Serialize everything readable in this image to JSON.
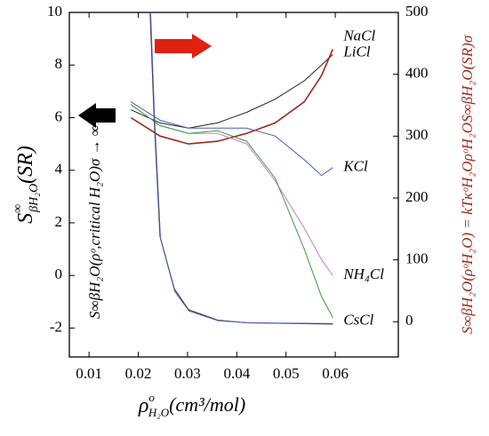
{
  "chart_data": {
    "type": "line",
    "x_label": [
      "ρ",
      "o",
      "H₂O",
      "(cm³/mol)"
    ],
    "y_label": [
      "S",
      "∞",
      "βH₂O",
      "(SR)"
    ],
    "y2_label": "S∞βH₂O(ρᵒH₂O) = kTκᵒH₂OρᵒH₂OS∞βH₂O(SR)σ",
    "annotation": "S∞βH₂O(ρᵒ,critical H₂O)σ → ∞",
    "xlim": [
      0.006,
      0.0728
    ],
    "xticks": [
      0.01,
      0.02,
      0.03,
      0.04,
      0.05,
      0.06
    ],
    "ylim": [
      -3.1,
      10
    ],
    "yticks": [
      -2,
      0,
      2,
      4,
      6,
      8,
      10
    ],
    "y2lim": [
      -57,
      500
    ],
    "y2ticks": [
      0,
      100,
      200,
      300,
      400,
      500
    ],
    "series": [
      {
        "name": "NaCl",
        "color": "#222222",
        "x": [
          0.0185,
          0.0244,
          0.0302,
          0.0361,
          0.042,
          0.0478,
          0.0537,
          0.0572,
          0.0595
        ],
        "values": [
          6.3,
          5.8,
          5.6,
          5.8,
          6.2,
          6.7,
          7.4,
          8.0,
          8.4
        ]
      },
      {
        "name": "LiCl",
        "color": "#a0281c",
        "x": [
          0.0185,
          0.0244,
          0.0302,
          0.0361,
          0.042,
          0.0478,
          0.0537,
          0.0572,
          0.0595
        ],
        "values": [
          6.0,
          5.3,
          5.0,
          5.1,
          5.4,
          5.8,
          6.6,
          7.6,
          8.6
        ]
      },
      {
        "name": "KCl",
        "color": "#4a5bb8",
        "x": [
          0.0185,
          0.0244,
          0.0302,
          0.0361,
          0.042,
          0.0478,
          0.0537,
          0.0572,
          0.0595
        ],
        "values": [
          6.6,
          5.9,
          5.6,
          5.6,
          5.6,
          5.3,
          4.4,
          3.8,
          4.1
        ]
      },
      {
        "name": "NH₄Cl",
        "color": "#c77ad6",
        "x": [
          0.0185,
          0.0244,
          0.0302,
          0.0361,
          0.042,
          0.0478,
          0.0537,
          0.0572,
          0.0595
        ],
        "values": [
          6.5,
          5.7,
          5.4,
          5.4,
          5.0,
          3.6,
          1.8,
          0.6,
          0.0
        ]
      },
      {
        "name": "CsCl",
        "color": "#3c9a3c",
        "x": [
          0.0185,
          0.0244,
          0.0302,
          0.0361,
          0.042,
          0.0478,
          0.0537,
          0.0572,
          0.0595
        ],
        "values": [
          6.5,
          5.7,
          5.4,
          5.5,
          5.1,
          3.7,
          1.0,
          -0.8,
          -1.6
        ]
      },
      {
        "color": "#333333",
        "x": [
          0.0224,
          0.0232,
          0.0244,
          0.0273,
          0.0302,
          0.0361,
          0.042,
          0.0595
        ],
        "values": [
          10,
          6,
          1.5,
          -0.5,
          -1.3,
          -1.7,
          -1.8,
          -1.85
        ]
      },
      {
        "color": "#4a5bb8",
        "x": [
          0.0225,
          0.0233,
          0.0245,
          0.0274,
          0.0303,
          0.0362,
          0.0421,
          0.0595
        ],
        "values": [
          10,
          6,
          1.4,
          -0.6,
          -1.35,
          -1.72,
          -1.8,
          -1.83
        ]
      }
    ]
  }
}
